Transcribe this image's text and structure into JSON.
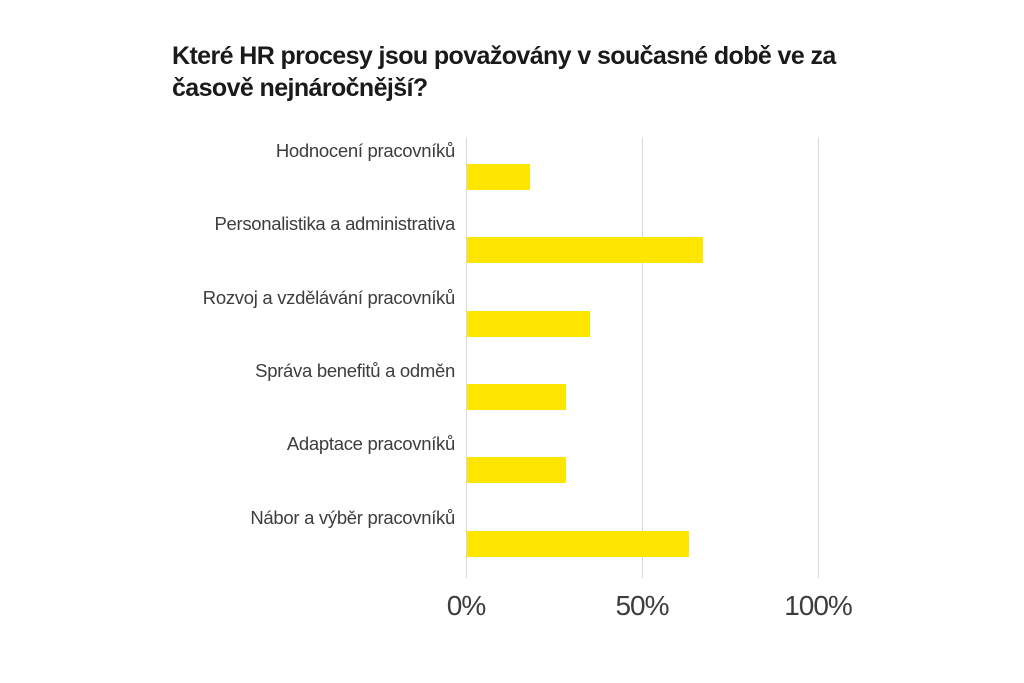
{
  "chart_title_lines": [
    "Které HR procesy jsou považovány v současné době ve za",
    "časově nejnáročnější?"
  ],
  "chart_data": {
    "type": "bar",
    "orientation": "horizontal",
    "title": "Které HR procesy jsou považovány v současné době ve za časově nejnáročnější?",
    "categories": [
      "Hodnocení pracovníků",
      "Personalistika a administrativa",
      "Rozvoj a vzdělávání pracovníků",
      "Správa benefitů a odměn",
      "Adaptace pracovníků",
      "Nábor a výběr pracovníků"
    ],
    "values": [
      18,
      67,
      35,
      28,
      28,
      63
    ],
    "value_unit": "%",
    "xlabel": "",
    "ylabel": "",
    "xlim": [
      0,
      100
    ],
    "x_tick_labels": [
      "0%",
      "50%",
      "100%"
    ],
    "x_tick_values": [
      0,
      50,
      100
    ],
    "grid": true,
    "legend": false,
    "colors": {
      "bar": "#FFE600",
      "gridline": "#D9D9D9",
      "title_text": "#1A1A1A",
      "label_text": "#3D3D3D",
      "background": "#FFFFFF"
    }
  }
}
